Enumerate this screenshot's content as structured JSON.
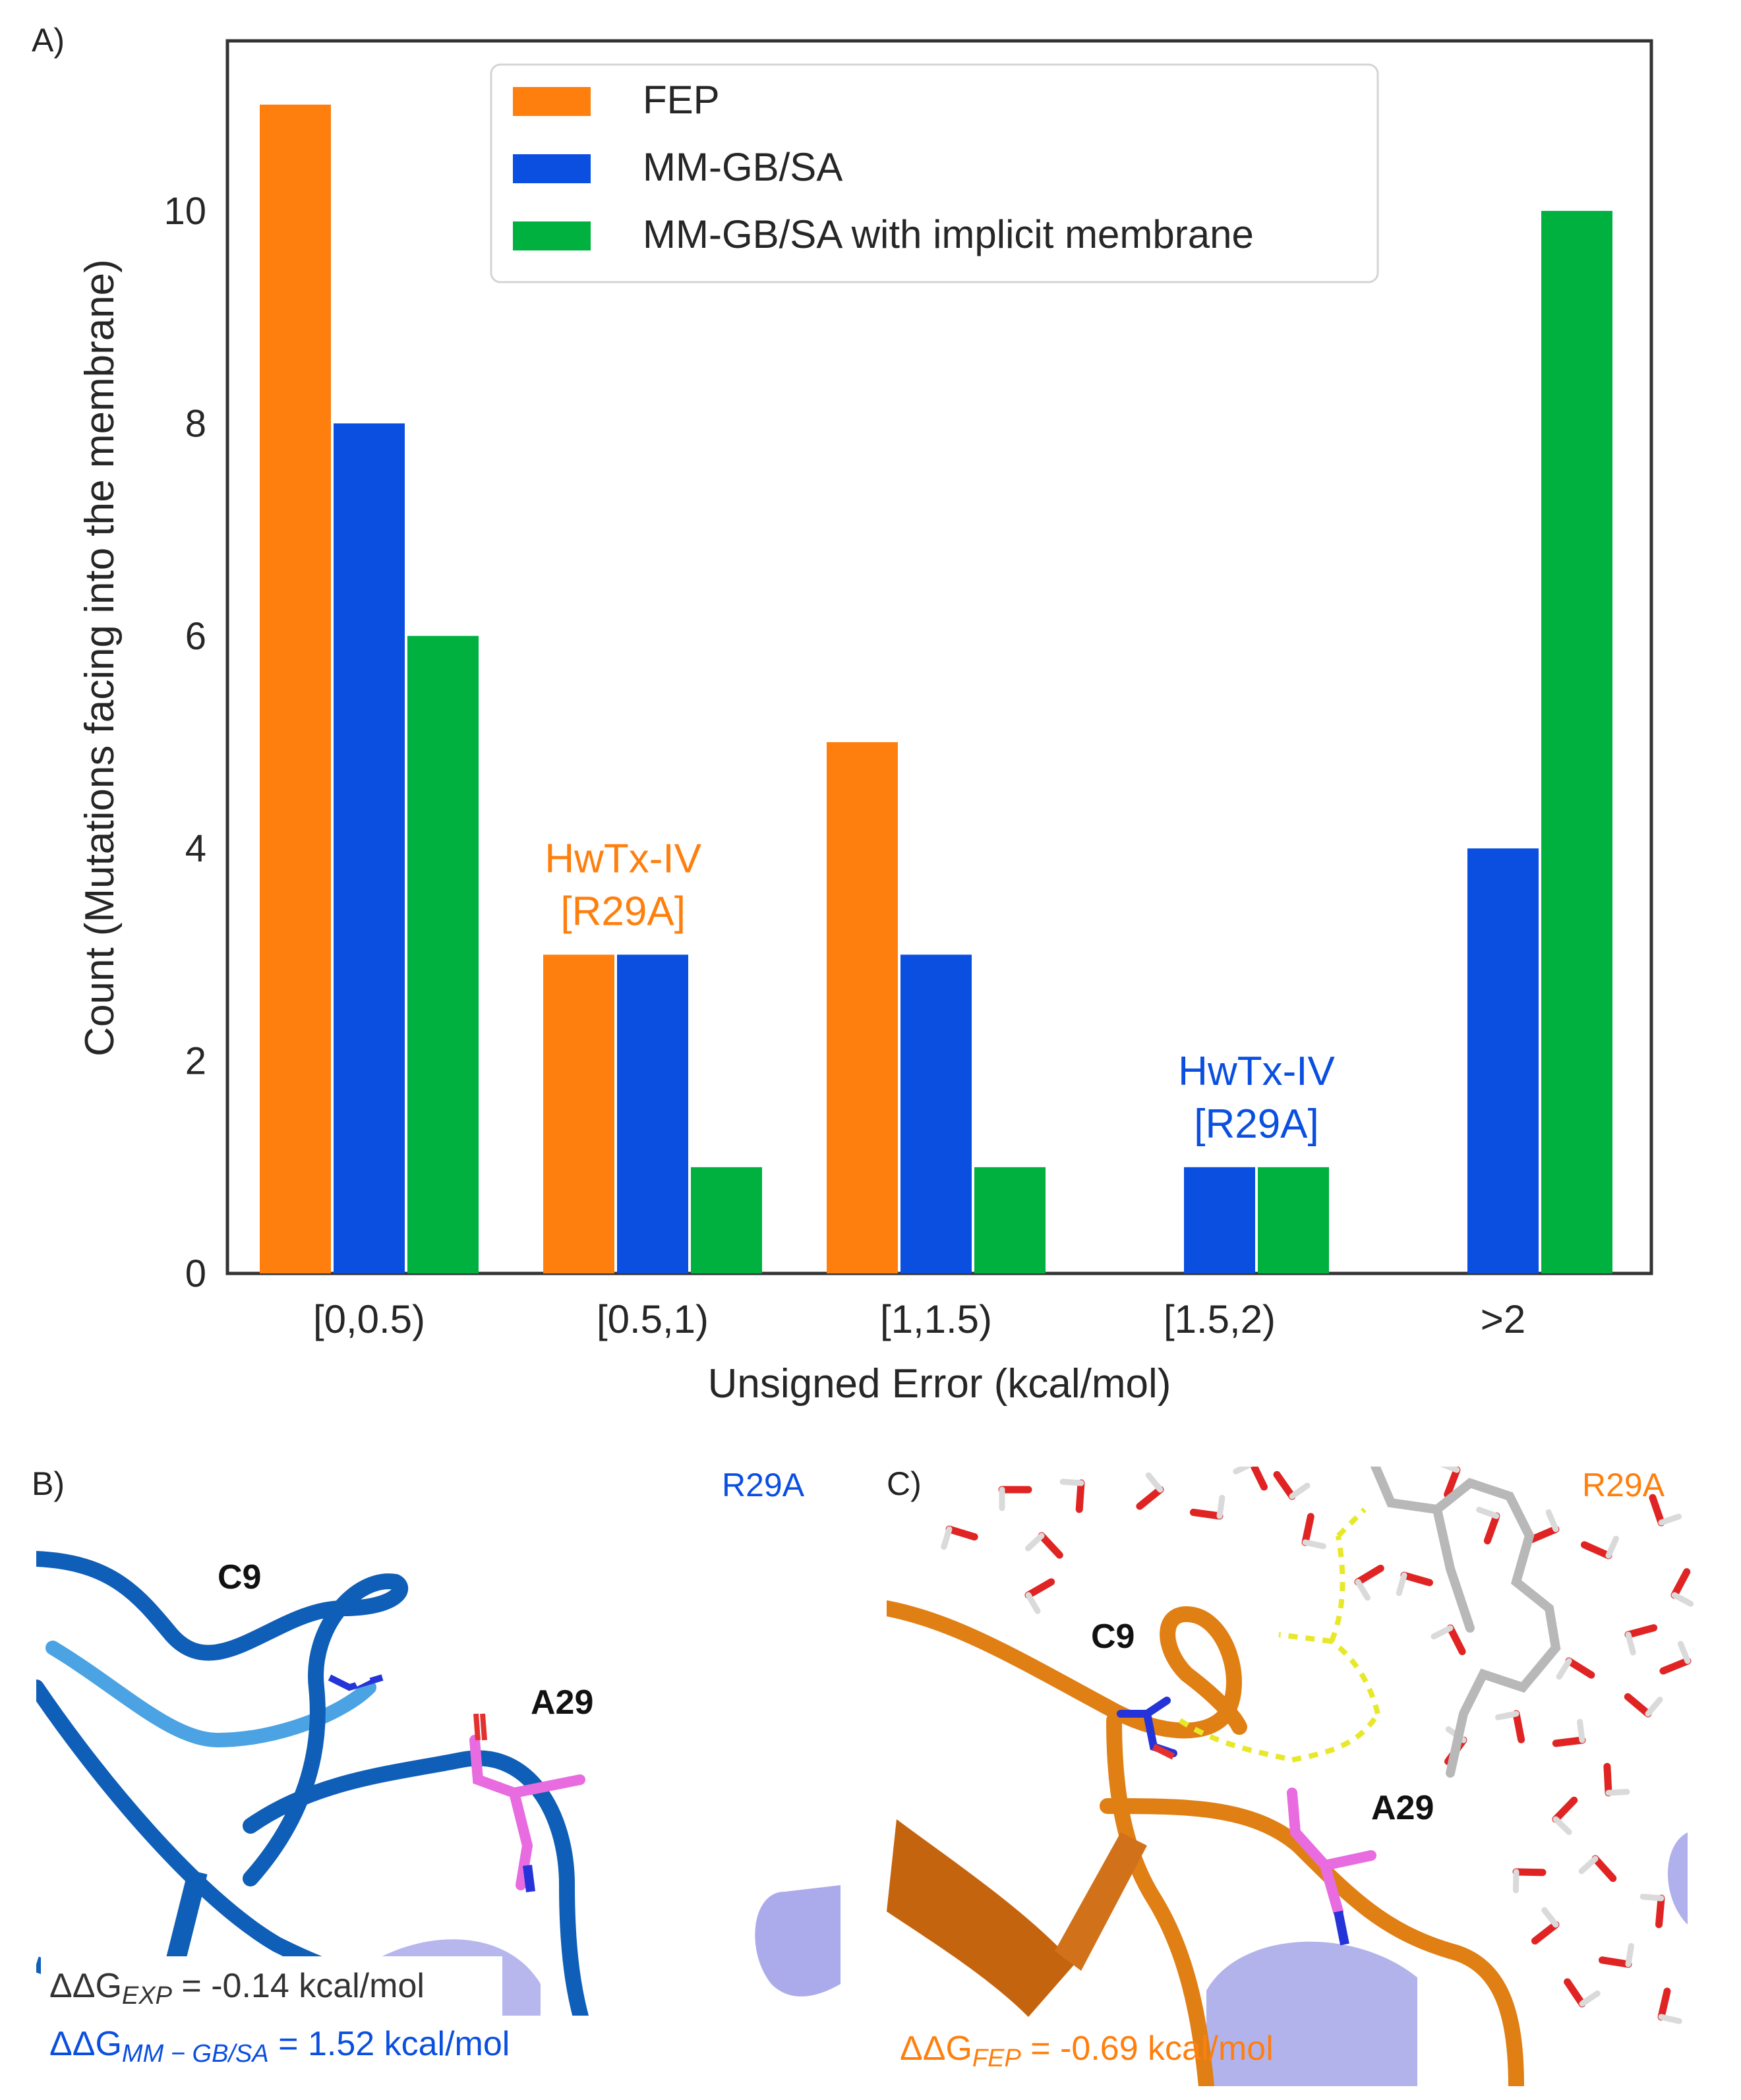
{
  "panels": {
    "a_label": "A)",
    "b_label": "B)",
    "c_label": "C)"
  },
  "chart_data": {
    "type": "bar",
    "title": "",
    "xlabel": "Unsigned Error (kcal/mol)",
    "ylabel": "Count (Mutations facing into the membrane)",
    "categories": [
      "[0,0.5)",
      "[0.5,1)",
      "[1,1.5)",
      "[1.5,2)",
      ">2"
    ],
    "series": [
      {
        "name": "FEP",
        "color": "#FF7F0E",
        "values": [
          11,
          3,
          5,
          0,
          0
        ]
      },
      {
        "name": "MM-GB/SA",
        "color": "#0A4FE0",
        "values": [
          8,
          3,
          3,
          1,
          4
        ]
      },
      {
        "name": "MM-GB/SA with implicit membrane",
        "color": "#00B140",
        "values": [
          6,
          1,
          1,
          1,
          10
        ]
      }
    ],
    "ylim": [
      0,
      11.6
    ],
    "yticks": [
      0,
      2,
      4,
      6,
      8,
      10
    ],
    "grid": false,
    "legend_position": "top-center",
    "annotations": [
      {
        "line1": "HwTx-IV",
        "line2": "[R29A]",
        "color": "#FF7F0E",
        "category": "[0.5,1)",
        "series": "FEP"
      },
      {
        "line1": "HwTx-IV",
        "line2": "[R29A]",
        "color": "#0A4FE0",
        "category": "[1.5,2)",
        "series": "MM-GB/SA"
      }
    ]
  },
  "panel_b": {
    "title": "R29A",
    "title_color": "#0A4FE0",
    "residue_1": "C9",
    "residue_2": "A29",
    "dg_exp_prefix": "ΔΔG",
    "dg_exp_sub": "EXP",
    "dg_exp_value": " = -0.14 kcal/mol",
    "dg_mm_prefix": "ΔΔG",
    "dg_mm_sub": "MM − GB/SA",
    "dg_mm_value": " = 1.52 kcal/mol",
    "dg_mm_color": "#0A4FE0"
  },
  "panel_c": {
    "title": "R29A",
    "title_color": "#FF7F0E",
    "residue_1": "C9",
    "residue_2": "A29",
    "dg_fep_prefix": "ΔΔG",
    "dg_fep_sub": "FEP",
    "dg_fep_value": " = -0.69 kcal/mol",
    "dg_fep_color": "#FF7F0E"
  }
}
